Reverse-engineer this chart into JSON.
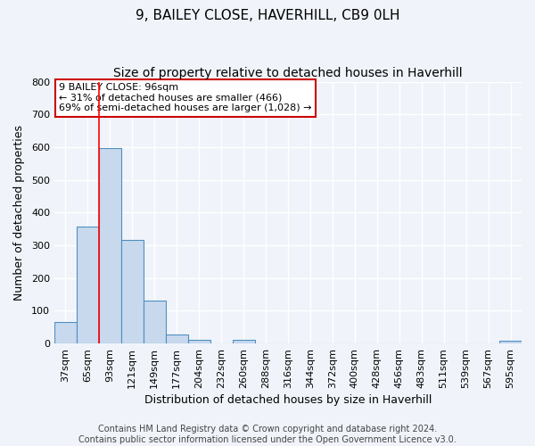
{
  "title": "9, BAILEY CLOSE, HAVERHILL, CB9 0LH",
  "subtitle": "Size of property relative to detached houses in Haverhill",
  "xlabel": "Distribution of detached houses by size in Haverhill",
  "ylabel": "Number of detached properties",
  "bar_labels": [
    "37sqm",
    "65sqm",
    "93sqm",
    "121sqm",
    "149sqm",
    "177sqm",
    "204sqm",
    "232sqm",
    "260sqm",
    "288sqm",
    "316sqm",
    "344sqm",
    "372sqm",
    "400sqm",
    "428sqm",
    "456sqm",
    "483sqm",
    "511sqm",
    "539sqm",
    "567sqm",
    "595sqm"
  ],
  "bar_values": [
    65,
    357,
    597,
    317,
    130,
    28,
    10,
    0,
    10,
    0,
    0,
    0,
    0,
    0,
    0,
    0,
    0,
    0,
    0,
    0,
    8
  ],
  "bar_color": "#c8d9ee",
  "bar_edge_color": "#4f8fc0",
  "ylim": [
    0,
    800
  ],
  "yticks": [
    0,
    100,
    200,
    300,
    400,
    500,
    600,
    700,
    800
  ],
  "annotation_lines": [
    "9 BAILEY CLOSE: 96sqm",
    "← 31% of detached houses are smaller (466)",
    "69% of semi-detached houses are larger (1,028) →"
  ],
  "red_line_bin_index": 2,
  "footer_line1": "Contains HM Land Registry data © Crown copyright and database right 2024.",
  "footer_line2": "Contains public sector information licensed under the Open Government Licence v3.0.",
  "background_color": "#f0f4fa",
  "grid_color": "#ffffff",
  "title_fontsize": 11,
  "subtitle_fontsize": 10,
  "axis_label_fontsize": 9,
  "tick_fontsize": 8,
  "annotation_fontsize": 8,
  "footer_fontsize": 7
}
